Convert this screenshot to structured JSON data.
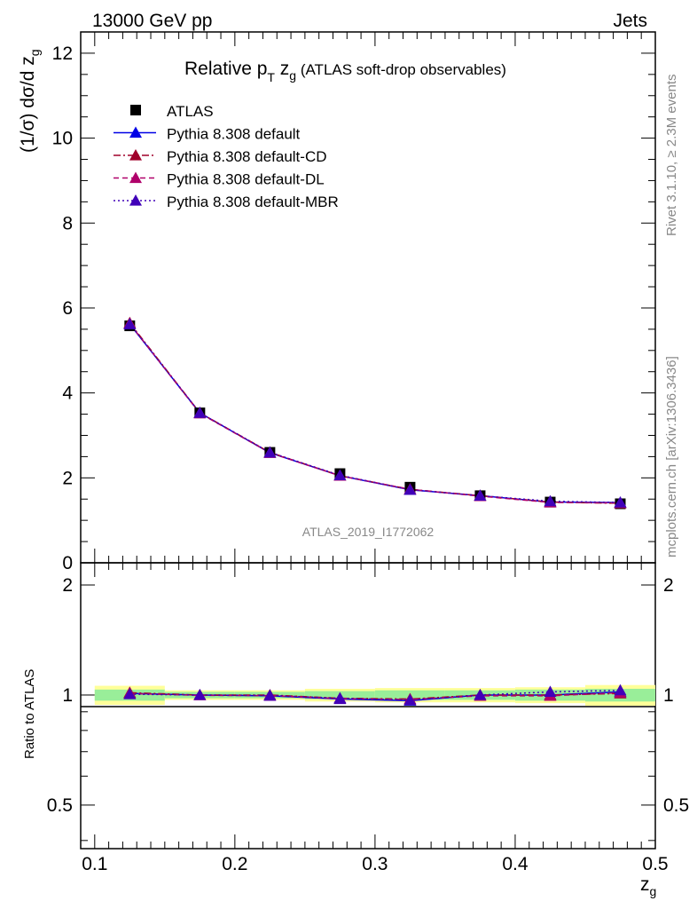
{
  "header": {
    "left": "13000 GeV pp",
    "right": "Jets"
  },
  "plot_title": {
    "prefix": "Relative p",
    "sub": "T",
    "mid": " z",
    "sub2": "g",
    "suffix": " (ATLAS soft-drop observables)"
  },
  "side_text": {
    "rivet": "Rivet 3.1.10, ≥ 2.3M events",
    "mcplots": "mcplots.cern.ch [arXiv:1306.3436]"
  },
  "analysis_id": "ATLAS_2019_I1772062",
  "chart_data": [
    {
      "type": "scatter",
      "panel": "main",
      "ylabel": "(1/σ) dσ/d z_g",
      "xlim": [
        0.09,
        0.5
      ],
      "ylim": [
        0,
        12.5
      ],
      "yticks": [
        0,
        2,
        4,
        6,
        8,
        10,
        12
      ],
      "x": [
        0.125,
        0.175,
        0.225,
        0.275,
        0.325,
        0.375,
        0.425,
        0.475
      ],
      "series": [
        {
          "name": "ATLAS",
          "color": "#000000",
          "marker": "square",
          "line": "none",
          "values": [
            5.58,
            3.53,
            2.6,
            2.1,
            1.78,
            1.58,
            1.43,
            1.39
          ]
        },
        {
          "name": "Pythia 8.308 default",
          "color": "#0000e6",
          "marker": "triangle",
          "line": "solid",
          "values": [
            5.62,
            3.53,
            2.59,
            2.05,
            1.72,
            1.58,
            1.43,
            1.42
          ]
        },
        {
          "name": "Pythia 8.308 default-CD",
          "color": "#a0002a",
          "marker": "triangle",
          "line": "dashdot",
          "values": [
            5.65,
            3.53,
            2.6,
            2.05,
            1.73,
            1.58,
            1.43,
            1.4
          ]
        },
        {
          "name": "Pythia 8.308 default-DL",
          "color": "#b0006a",
          "marker": "triangle",
          "line": "dashed",
          "values": [
            5.63,
            3.52,
            2.59,
            2.05,
            1.73,
            1.57,
            1.42,
            1.41
          ]
        },
        {
          "name": "Pythia 8.308 default-MBR",
          "color": "#4000b8",
          "marker": "triangle",
          "line": "dotted",
          "values": [
            5.62,
            3.53,
            2.6,
            2.06,
            1.72,
            1.58,
            1.45,
            1.42
          ]
        }
      ]
    },
    {
      "type": "line",
      "panel": "ratio",
      "ylabel": "Ratio to ATLAS",
      "xlabel": "z_g",
      "xlim": [
        0.09,
        0.5
      ],
      "ylim": [
        0.38,
        2.3
      ],
      "yticks": [
        0.5,
        1,
        2
      ],
      "xticks": [
        0.1,
        0.2,
        0.3,
        0.4,
        0.5
      ],
      "x": [
        0.125,
        0.175,
        0.225,
        0.275,
        0.325,
        0.375,
        0.425,
        0.475
      ],
      "bin_edges": [
        0.1,
        0.15,
        0.2,
        0.25,
        0.3,
        0.35,
        0.4,
        0.45,
        0.5
      ],
      "band_inner": [
        0.035,
        0.02,
        0.02,
        0.025,
        0.03,
        0.03,
        0.035,
        0.04
      ],
      "band_outer": [
        0.06,
        0.03,
        0.03,
        0.04,
        0.045,
        0.045,
        0.05,
        0.065
      ],
      "series": [
        {
          "name": "Pythia 8.308 default",
          "color": "#0000e6",
          "line": "solid",
          "values": [
            1.01,
            1.0,
            0.995,
            0.975,
            0.965,
            1.0,
            1.0,
            1.02
          ]
        },
        {
          "name": "Pythia 8.308 default-CD",
          "color": "#a0002a",
          "line": "dashdot",
          "values": [
            1.015,
            1.0,
            1.0,
            0.98,
            0.975,
            1.0,
            1.0,
            1.01
          ]
        },
        {
          "name": "Pythia 8.308 default-DL",
          "color": "#b0006a",
          "line": "dashed",
          "values": [
            1.01,
            0.998,
            0.996,
            0.978,
            0.972,
            0.995,
            0.995,
            1.015
          ]
        },
        {
          "name": "Pythia 8.308 default-MBR",
          "color": "#4000b8",
          "line": "dotted",
          "values": [
            1.005,
            1.0,
            0.998,
            0.98,
            0.968,
            1.0,
            1.02,
            1.03
          ]
        }
      ]
    }
  ]
}
